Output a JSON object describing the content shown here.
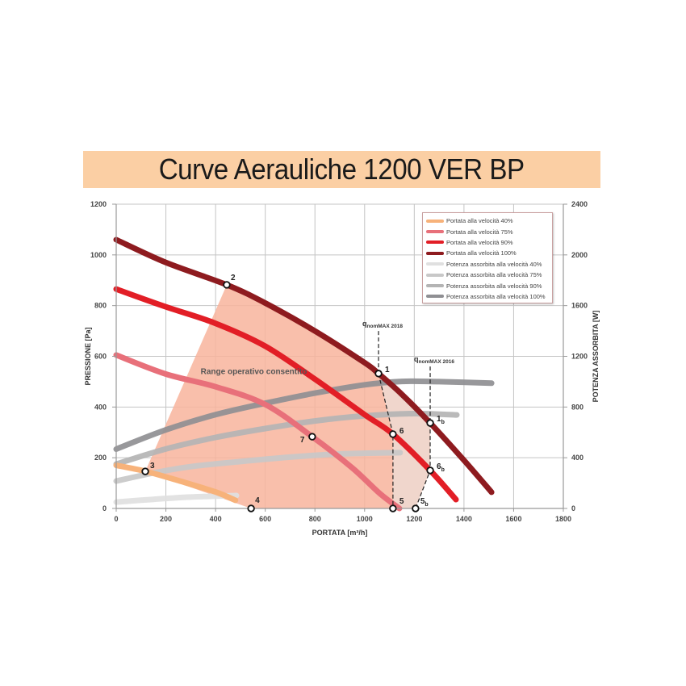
{
  "title": "Curve Aerauliche 1200 VER BP",
  "chart_data": {
    "type": "line",
    "title": "Curve Aerauliche 1200 VER BP",
    "xlabel": "PORTATA [m³/h]",
    "ylabel": "PRESSIONE [Pa]",
    "y2label": "POTENZA ASSORBITA [W]",
    "xlim": [
      0,
      1800
    ],
    "ylim": [
      0,
      1200
    ],
    "y2lim": [
      0,
      2400
    ],
    "x_ticks": [
      "0",
      "200",
      "400",
      "600",
      "800",
      "1000",
      "1200",
      "1400",
      "1600",
      "1800"
    ],
    "y_ticks": [
      "0",
      "200",
      "400",
      "600",
      "800",
      "1000",
      "1200"
    ],
    "y2_ticks": [
      "0",
      "400",
      "800",
      "1200",
      "1600",
      "2000",
      "2400"
    ],
    "grid": true,
    "legend_position": "top-right",
    "series": [
      {
        "name": "Portata alla velocità 40%",
        "axis": "left",
        "color": "#f7b27a",
        "points": [
          [
            0,
            170
          ],
          [
            120,
            146
          ],
          [
            250,
            110
          ],
          [
            400,
            65
          ],
          [
            480,
            32
          ]
        ]
      },
      {
        "name": "Portata alla velocità 75%",
        "axis": "left",
        "color": "#e8707a",
        "points": [
          [
            0,
            605
          ],
          [
            200,
            530
          ],
          [
            400,
            480
          ],
          [
            600,
            410
          ],
          [
            789,
            283
          ],
          [
            950,
            160
          ],
          [
            1060,
            60
          ],
          [
            1140,
            0
          ]
        ]
      },
      {
        "name": "Portata alla velocità 90%",
        "axis": "left",
        "color": "#e21e26",
        "points": [
          [
            0,
            865
          ],
          [
            200,
            795
          ],
          [
            400,
            730
          ],
          [
            600,
            640
          ],
          [
            800,
            510
          ],
          [
            1000,
            370
          ],
          [
            1114,
            293
          ],
          [
            1264,
            150
          ],
          [
            1368,
            35
          ]
        ]
      },
      {
        "name": "Portata alla velocità 100%",
        "axis": "left",
        "color": "#8e1b1f",
        "points": [
          [
            0,
            1060
          ],
          [
            200,
            970
          ],
          [
            445,
            882
          ],
          [
            600,
            810
          ],
          [
            800,
            700
          ],
          [
            1000,
            575
          ],
          [
            1056,
            532
          ],
          [
            1150,
            450
          ],
          [
            1264,
            337
          ],
          [
            1400,
            190
          ],
          [
            1511,
            64
          ]
        ]
      },
      {
        "name": "Potenza assorbita alla velocità 40%",
        "axis": "right",
        "color": "#e0e0e0",
        "points": [
          [
            0,
            50
          ],
          [
            150,
            72
          ],
          [
            300,
            90
          ],
          [
            484,
            102
          ]
        ]
      },
      {
        "name": "Potenza assorbita alla velocità 75%",
        "axis": "right",
        "color": "#c8c8c8",
        "points": [
          [
            0,
            216
          ],
          [
            150,
            280
          ],
          [
            300,
            330
          ],
          [
            500,
            370
          ],
          [
            700,
            405
          ],
          [
            900,
            430
          ],
          [
            1143,
            440
          ]
        ]
      },
      {
        "name": "Potenza assorbita alla velocità 90%",
        "axis": "right",
        "color": "#b4b4b4",
        "points": [
          [
            0,
            350
          ],
          [
            200,
            470
          ],
          [
            400,
            560
          ],
          [
            600,
            630
          ],
          [
            800,
            690
          ],
          [
            1000,
            730
          ],
          [
            1200,
            748
          ],
          [
            1371,
            738
          ]
        ]
      },
      {
        "name": "Potenza assorbita alla velocità 100%",
        "axis": "right",
        "color": "#8f8f93",
        "points": [
          [
            0,
            468
          ],
          [
            200,
            620
          ],
          [
            400,
            740
          ],
          [
            600,
            830
          ],
          [
            800,
            910
          ],
          [
            1000,
            975
          ],
          [
            1150,
            1002
          ],
          [
            1300,
            1000
          ],
          [
            1511,
            988
          ]
        ]
      }
    ],
    "operating_range": {
      "label": "Range operativo consentito",
      "color": "#f8b49c",
      "polygon": [
        [
          117,
          146
        ],
        [
          445,
          882
        ],
        [
          600,
          810
        ],
        [
          800,
          700
        ],
        [
          1000,
          575
        ],
        [
          1056,
          532
        ],
        [
          1114,
          293
        ],
        [
          1114,
          0
        ],
        [
          543,
          0
        ]
      ]
    },
    "extended_range": {
      "color": "#f0d6cc",
      "polygon": [
        [
          1056,
          532
        ],
        [
          1150,
          450
        ],
        [
          1264,
          337
        ],
        [
          1264,
          150
        ],
        [
          1205,
          0
        ],
        [
          1114,
          0
        ],
        [
          1114,
          293
        ]
      ]
    },
    "reference_lines": [
      {
        "label": "q",
        "sub": "nomMAX 2018",
        "x": 1056,
        "from_y": 700,
        "to_y": 532
      },
      {
        "label": "q",
        "sub": "nomMAX 2016",
        "x": 1264,
        "from_y": 560,
        "to_y": 337
      }
    ],
    "dashed_connectors": [
      [
        [
          1056,
          532
        ],
        [
          1114,
          293
        ],
        [
          1114,
          0
        ]
      ],
      [
        [
          1264,
          337
        ],
        [
          1264,
          150
        ],
        [
          1205,
          0
        ]
      ]
    ],
    "annotated_points": [
      {
        "label": "1",
        "sub": "",
        "x": 1056,
        "y": 532
      },
      {
        "label": "1",
        "sub": "b",
        "x": 1264,
        "y": 337
      },
      {
        "label": "2",
        "sub": "",
        "x": 445,
        "y": 882
      },
      {
        "label": "3",
        "sub": "",
        "x": 117,
        "y": 146
      },
      {
        "label": "4",
        "sub": "",
        "x": 543,
        "y": 0
      },
      {
        "label": "5",
        "sub": "",
        "x": 1114,
        "y": 0
      },
      {
        "label": "5",
        "sub": "b",
        "x": 1205,
        "y": 0
      },
      {
        "label": "6",
        "sub": "",
        "x": 1114,
        "y": 293
      },
      {
        "label": "6",
        "sub": "b",
        "x": 1264,
        "y": 150
      },
      {
        "label": "7",
        "sub": "",
        "x": 789,
        "y": 283
      }
    ]
  },
  "legend": {
    "items": [
      {
        "label": "Portata alla velocità 40%",
        "color": "#f7b27a"
      },
      {
        "label": "Portata alla velocità 75%",
        "color": "#e8707a"
      },
      {
        "label": "Portata alla velocità 90%",
        "color": "#e21e26"
      },
      {
        "label": "Portata alla velocità 100%",
        "color": "#8e1b1f"
      },
      {
        "label": "Potenza assorbita alla velocità 40%",
        "color": "#e0e0e0"
      },
      {
        "label": "Potenza assorbita alla velocità 75%",
        "color": "#c8c8c8"
      },
      {
        "label": "Potenza assorbita alla velocità 90%",
        "color": "#b4b4b4"
      },
      {
        "label": "Potenza assorbita alla velocità 100%",
        "color": "#8f8f93"
      }
    ]
  }
}
